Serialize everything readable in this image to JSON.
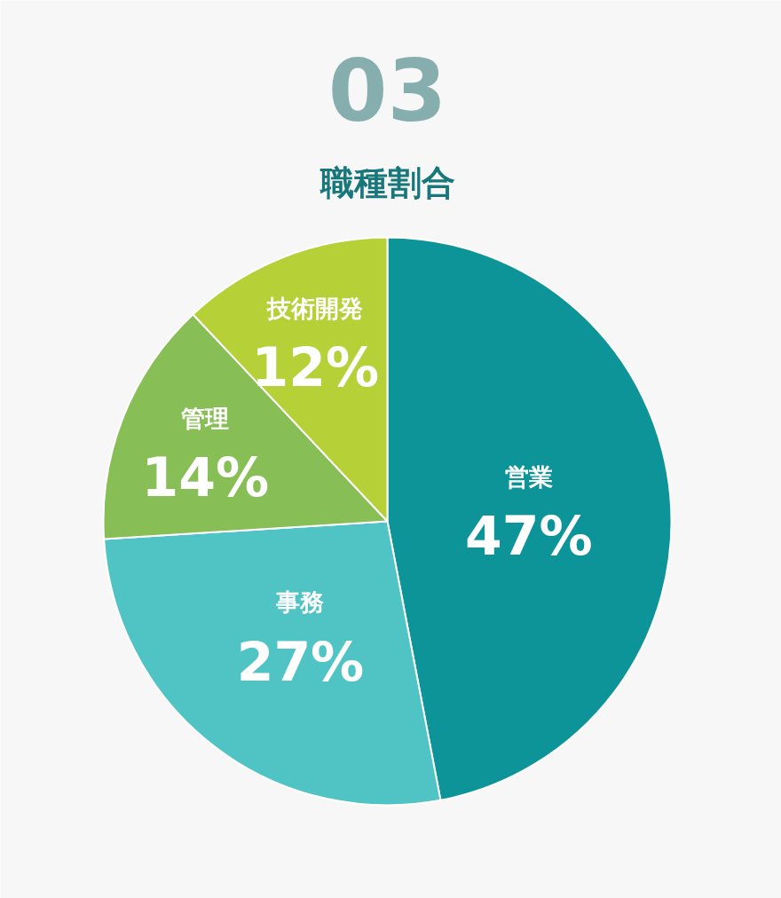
{
  "chart_data": {
    "type": "pie",
    "title": "職種割合",
    "annotations": [
      "03"
    ],
    "categories": [
      "営業",
      "事務",
      "管理",
      "技術開発"
    ],
    "values": [
      47,
      27,
      14,
      12
    ],
    "colors": [
      "#0c9499",
      "#50c4c4",
      "#87be55",
      "#b6d137"
    ],
    "value_labels": [
      "47%",
      "27%",
      "14%",
      "12%"
    ]
  }
}
